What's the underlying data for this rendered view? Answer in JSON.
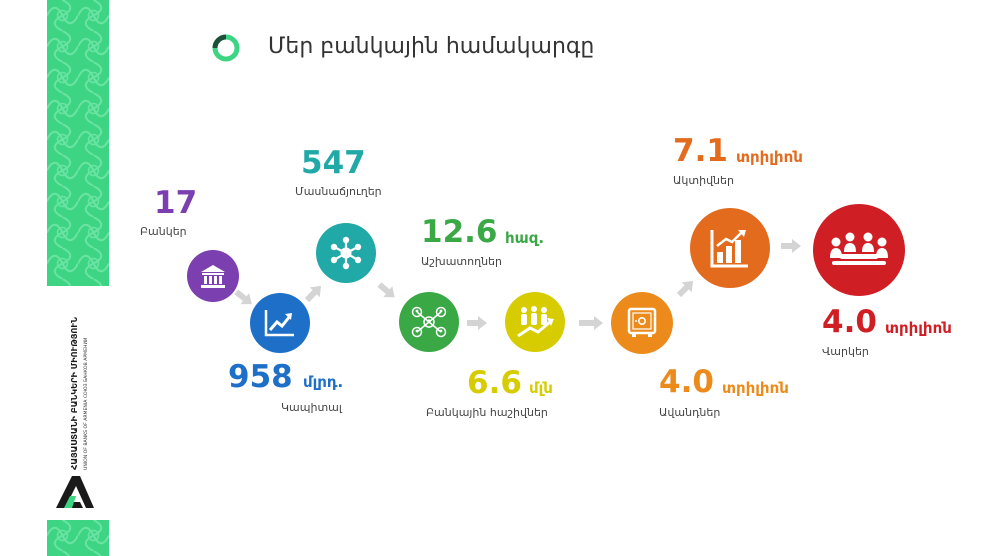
{
  "title": "Մեր բանկային համակարգը",
  "colors": {
    "green_band": "#3dd584",
    "purple": "#7b3fb0",
    "blue": "#1e6fc8",
    "teal": "#21a9a7",
    "green": "#3aa845",
    "yellow": "#d6cc00",
    "orange": "#ec8b1c",
    "dark_orange": "#e36b1e",
    "red": "#cf1f25",
    "arrow": "#d4d4d4"
  },
  "logo": {
    "line1": "ՀԱՅԱՍՏԱՆԻ ԲԱՆԿԵՐԻ ՄԻՈՒԹՅՈՒՆ",
    "line2": "UNION OF BANKS OF ARMENIA   СОЮЗ БАНКОВ АРМЕНИИ"
  },
  "stats": {
    "banks": {
      "value": "17",
      "label": "Բանկեր",
      "icon": "bank-icon"
    },
    "capital": {
      "value": "958",
      "unit": "մլրդ.",
      "label": "Կապիտալ",
      "icon": "growth-chart-icon"
    },
    "branches": {
      "value": "547",
      "label": "Մասնաճյուղեր",
      "icon": "network-icon"
    },
    "employees": {
      "value": "12.6",
      "unit": "հազ.",
      "label": "Աշխատողներ",
      "icon": "people-network-icon"
    },
    "accounts": {
      "value": "6.6",
      "unit": "մլն",
      "label": "Բանկային հաշիվներ",
      "icon": "people-growth-icon"
    },
    "deposits": {
      "value": "4.0",
      "unit": "տրիլիոն",
      "label": "Ավանդներ",
      "icon": "safe-icon"
    },
    "assets": {
      "value": "7.1",
      "unit": "տրիլիոն",
      "label": "Ակտիվներ",
      "icon": "bar-chart-icon"
    },
    "loans": {
      "value": "4.0",
      "unit": "տրիլիոն",
      "label": "Վարկեր",
      "icon": "meeting-icon"
    }
  }
}
